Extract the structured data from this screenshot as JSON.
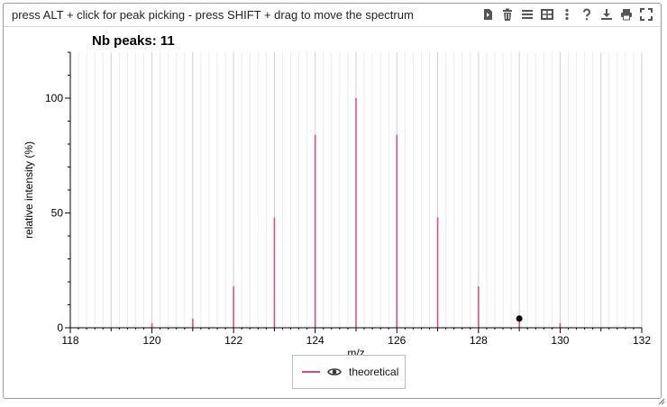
{
  "toolbar": {
    "hint": "press ALT + click for peak picking - press SHIFT + drag to move the spectrum",
    "tools": [
      "export-data-icon",
      "trash-icon",
      "list-icon",
      "table-icon",
      "more-vertical-icon",
      "help-icon",
      "download-icon",
      "print-icon",
      "fullscreen-icon"
    ]
  },
  "legend": {
    "label": "theoretical",
    "color": "#e0457b"
  },
  "chart_data": {
    "type": "bar",
    "title": "Nb peaks: 11",
    "xlabel": "m/z",
    "ylabel": "relative intensity (%)",
    "xlim": [
      118,
      132
    ],
    "ylim": [
      0,
      120
    ],
    "xticks": [
      "118",
      "120",
      "122",
      "124",
      "126",
      "128",
      "130",
      "132"
    ],
    "yticks": [
      "0",
      "50",
      "100"
    ],
    "series": [
      {
        "name": "theoretical",
        "color": "#e0457b",
        "x": [
          120,
          121,
          122,
          123,
          124,
          125,
          126,
          127,
          128,
          129,
          130
        ],
        "values": [
          2,
          4,
          18,
          48,
          84,
          100,
          84,
          48,
          18,
          4,
          2
        ]
      }
    ],
    "marker": {
      "x": 129,
      "y": 4
    }
  }
}
